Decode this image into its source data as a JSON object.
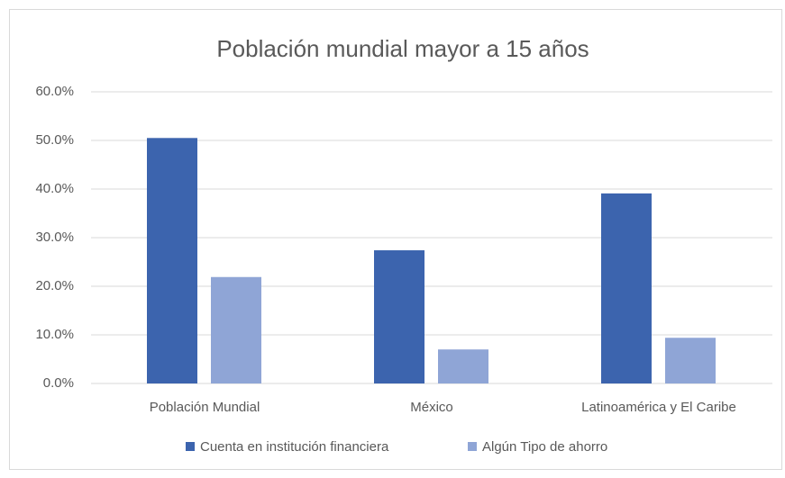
{
  "chart_data": {
    "type": "bar",
    "title": "Población mundial mayor a 15 años",
    "categories": [
      "Población Mundial",
      "México",
      "Latinoamérica y El Caribe"
    ],
    "series": [
      {
        "name": "Cuenta en institución financiera",
        "color": "#3c64ae",
        "values": [
          50.5,
          27.4,
          39.1
        ]
      },
      {
        "name": "Algún Tipo de ahorro",
        "color": "#8fa5d6",
        "values": [
          21.9,
          7.0,
          9.4
        ]
      }
    ],
    "ylim": [
      0,
      60
    ],
    "yticks": [
      {
        "value": 0,
        "label": "0.0%"
      },
      {
        "value": 10,
        "label": "10.0%"
      },
      {
        "value": 20,
        "label": "20.0%"
      },
      {
        "value": 30,
        "label": "30.0%"
      },
      {
        "value": 40,
        "label": "40.0%"
      },
      {
        "value": 50,
        "label": "50.0%"
      },
      {
        "value": 60,
        "label": "60.0%"
      }
    ],
    "grid": true,
    "legend": "bottom"
  }
}
